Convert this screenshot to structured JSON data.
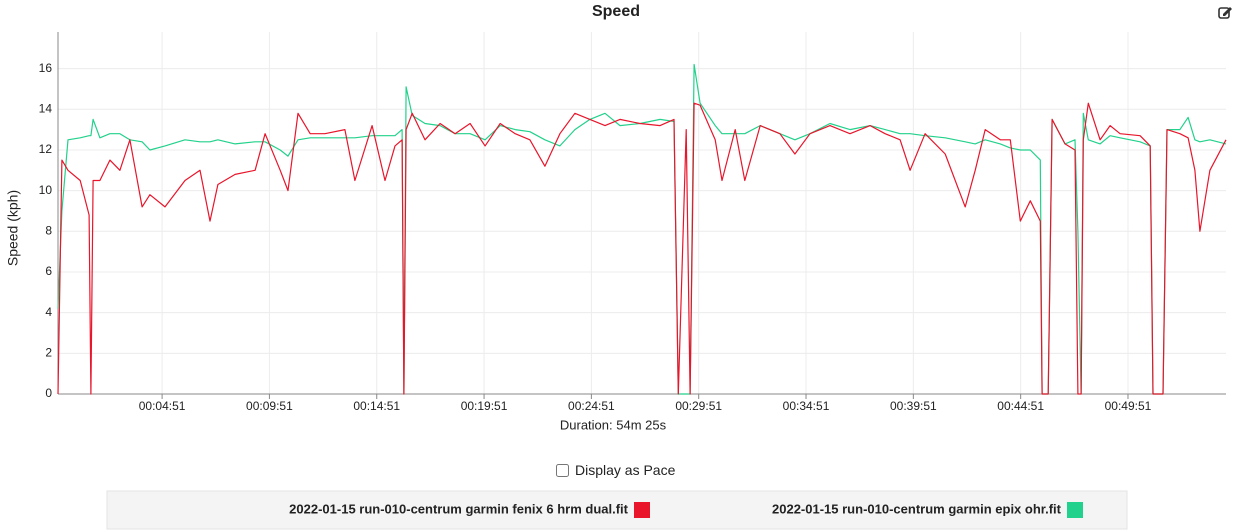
{
  "chart_data": {
    "type": "line",
    "title": "Speed",
    "y_label": "Speed (kph)",
    "x_label": "Duration: 54m 25s",
    "xlim": [
      0,
      3265
    ],
    "ylim": [
      0,
      17.8
    ],
    "grid": true,
    "xticks": [
      {
        "value": 291,
        "label": "00:04:51"
      },
      {
        "value": 591,
        "label": "00:09:51"
      },
      {
        "value": 891,
        "label": "00:14:51"
      },
      {
        "value": 1191,
        "label": "00:19:51"
      },
      {
        "value": 1491,
        "label": "00:24:51"
      },
      {
        "value": 1791,
        "label": "00:29:51"
      },
      {
        "value": 2091,
        "label": "00:34:51"
      },
      {
        "value": 2391,
        "label": "00:39:51"
      },
      {
        "value": 2691,
        "label": "00:44:51"
      },
      {
        "value": 2991,
        "label": "00:49:51"
      }
    ],
    "yticks": [
      0,
      2,
      4,
      6,
      8,
      10,
      12,
      14,
      16
    ],
    "x": [
      0,
      11,
      28,
      62,
      87,
      92,
      98,
      117,
      145,
      173,
      201,
      235,
      257,
      299,
      355,
      397,
      425,
      447,
      495,
      551,
      579,
      621,
      643,
      671,
      705,
      746,
      802,
      830,
      878,
      914,
      942,
      962,
      967,
      973,
      990,
      1026,
      1068,
      1110,
      1152,
      1194,
      1236,
      1278,
      1319,
      1361,
      1403,
      1445,
      1487,
      1529,
      1571,
      1627,
      1683,
      1722,
      1734,
      1756,
      1767,
      1778,
      1795,
      1837,
      1856,
      1893,
      1920,
      1963,
      2018,
      2060,
      2102,
      2158,
      2214,
      2270,
      2312,
      2354,
      2382,
      2424,
      2480,
      2536,
      2564,
      2592,
      2634,
      2662,
      2690,
      2718,
      2746,
      2751,
      2768,
      2779,
      2815,
      2843,
      2851,
      2860,
      2866,
      2880,
      2913,
      2941,
      2969,
      3025,
      3053,
      3061,
      3089,
      3100,
      3136,
      3159,
      3178,
      3192,
      3220,
      3265
    ],
    "series": [
      {
        "name": "2022-01-15 run-010-centrum garmin fenix 6 hrm dual.fit",
        "color": "#e8152b",
        "values": [
          0,
          11.5,
          11,
          10.5,
          8.8,
          0,
          10.5,
          10.5,
          11.5,
          11,
          12.5,
          9.2,
          9.8,
          9.2,
          10.5,
          11,
          8.5,
          10.3,
          10.8,
          11,
          12.8,
          11,
          10,
          13.8,
          12.8,
          12.8,
          13,
          10.5,
          13.2,
          10.5,
          12.2,
          12.5,
          0,
          13,
          13.8,
          12.5,
          13.3,
          12.8,
          13.3,
          12.2,
          13.3,
          12.8,
          12.5,
          11.2,
          12.8,
          13.8,
          13.5,
          13.2,
          13.5,
          13.3,
          13.2,
          13.5,
          0,
          13,
          0,
          14.3,
          14.2,
          12.5,
          10.5,
          13,
          10.5,
          13.2,
          12.8,
          11.8,
          12.8,
          13.2,
          12.8,
          13.2,
          12.8,
          12.5,
          11,
          12.8,
          11.8,
          9.2,
          11,
          13,
          12.5,
          12.5,
          8.5,
          9.5,
          8.5,
          0,
          0,
          13.5,
          12.3,
          12,
          0,
          0,
          12.5,
          14.3,
          12.5,
          13.2,
          12.8,
          12.7,
          12.2,
          0,
          0,
          13,
          12.8,
          12.6,
          11,
          8,
          11,
          12.5
        ]
      },
      {
        "name": "2022-01-15 run-010-centrum garmin epix ohr.fit",
        "color": "#22d18b",
        "values": [
          4.2,
          9,
          12.5,
          12.6,
          12.7,
          12.7,
          13.5,
          12.6,
          12.8,
          12.8,
          12.5,
          12.4,
          12,
          12.2,
          12.5,
          12.4,
          12.4,
          12.5,
          12.3,
          12.4,
          12.4,
          12,
          11.7,
          12.5,
          12.6,
          12.6,
          12.6,
          12.6,
          12.7,
          12.7,
          12.7,
          13,
          0,
          15.1,
          13.7,
          13.3,
          13.2,
          12.8,
          12.8,
          12.5,
          13.2,
          13,
          12.9,
          12.5,
          12.2,
          13,
          13.5,
          13.8,
          13.2,
          13.3,
          13.5,
          13.4,
          0,
          0,
          0,
          16.2,
          14.3,
          13.2,
          12.8,
          12.8,
          12.8,
          13.2,
          12.8,
          12.5,
          12.8,
          13.3,
          13,
          13.2,
          13,
          12.8,
          12.8,
          12.7,
          12.6,
          12.4,
          12.3,
          12.5,
          12.3,
          12.1,
          12,
          12,
          11.5,
          0,
          0,
          13.5,
          12.3,
          12.5,
          8,
          0,
          13.8,
          12.5,
          12.3,
          12.7,
          12.6,
          12.4,
          12.2,
          0,
          0,
          13,
          13,
          13.6,
          12.5,
          12.4,
          12.5,
          12.3
        ]
      }
    ],
    "controls": {
      "pace_toggle": "Display as Pace"
    }
  }
}
